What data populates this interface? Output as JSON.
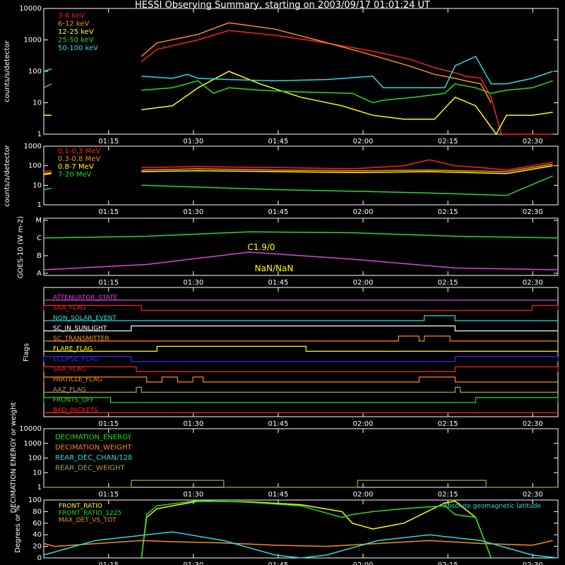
{
  "title": "HESSI Observing Summary, starting on 2003/09/17 01:01:24 UT",
  "time_ticks": [
    "01:15",
    "01:30",
    "01:45",
    "02:00",
    "02:15",
    "02:30"
  ],
  "colors": {
    "white": "#ffffff",
    "red": "#ff2020",
    "orange": "#ff8c1a",
    "yellow": "#ffff00",
    "green": "#22dd22",
    "cyan": "#20e0e0",
    "magenta": "#e040e0",
    "blue": "#3030ff",
    "olive": "#b0a040",
    "gray": "#808080"
  },
  "chart_data": [
    {
      "type": "line",
      "ylabel": "counts/s/detector",
      "y_scale": "log",
      "ylim": [
        1,
        10000
      ],
      "ytick_labels": [
        "1",
        "10",
        "100",
        "1000",
        "10000"
      ],
      "series": [
        {
          "name": "3-6 keV",
          "color": "red",
          "x": [
            0.0,
            0.02,
            0.17,
            0.19,
            0.22,
            0.3,
            0.36,
            0.45,
            0.53,
            0.62,
            0.71,
            0.76,
            0.8,
            0.82,
            0.85,
            0.87,
            0.89,
            0.99
          ],
          "y": [
            null,
            null,
            null,
            200,
            500,
            1000,
            2000,
            1400,
            900,
            500,
            250,
            130,
            90,
            70,
            60,
            15,
            1,
            1
          ]
        },
        {
          "name": "6-12 keV",
          "color": "orange",
          "x": [
            0.02,
            0.19,
            0.22,
            0.3,
            0.36,
            0.45,
            0.53,
            0.62,
            0.71,
            0.76,
            0.8,
            0.82,
            0.85,
            0.87
          ],
          "y": [
            null,
            300,
            800,
            1500,
            3500,
            2200,
            1000,
            400,
            150,
            80,
            60,
            50,
            40,
            10
          ]
        },
        {
          "name": "12-25 keV",
          "color": "yellow",
          "x": [
            0.0,
            0.015,
            0.02,
            0.19,
            0.25,
            0.3,
            0.36,
            0.42,
            0.5,
            0.58,
            0.64,
            0.7,
            0.76,
            0.8,
            0.84,
            0.88,
            0.9,
            0.95,
            0.99
          ],
          "y": [
            4,
            4,
            null,
            6,
            8,
            30,
            100,
            40,
            15,
            8,
            4,
            3,
            3,
            15,
            8,
            1,
            4,
            4,
            5
          ]
        },
        {
          "name": "25-50 keV",
          "color": "green",
          "x": [
            0.0,
            0.015,
            0.02,
            0.19,
            0.25,
            0.3,
            0.33,
            0.36,
            0.42,
            0.5,
            0.6,
            0.64,
            0.66,
            0.72,
            0.78,
            0.8,
            0.84,
            0.87,
            0.9,
            0.95,
            0.99
          ],
          "y": [
            30,
            40,
            null,
            25,
            30,
            50,
            20,
            30,
            25,
            22,
            20,
            10,
            12,
            15,
            20,
            40,
            30,
            20,
            25,
            30,
            50
          ]
        },
        {
          "name": "50-100 keV",
          "color": "cyan",
          "x": [
            0.0,
            0.015,
            0.02,
            0.19,
            0.25,
            0.28,
            0.3,
            0.36,
            0.45,
            0.55,
            0.64,
            0.66,
            0.72,
            0.78,
            0.8,
            0.84,
            0.87,
            0.9,
            0.95,
            0.99
          ],
          "y": [
            100,
            120,
            null,
            70,
            60,
            80,
            60,
            55,
            50,
            55,
            70,
            30,
            30,
            30,
            150,
            300,
            40,
            40,
            60,
            100
          ]
        }
      ]
    },
    {
      "type": "line",
      "ylabel": "counts/s/detector",
      "y_scale": "log",
      "ylim": [
        1,
        1000
      ],
      "ytick_labels": [
        "1",
        "10",
        "100",
        "1000"
      ],
      "series": [
        {
          "name": "0.1-0.3 MeV",
          "color": "red",
          "x": [
            0.0,
            0.015,
            0.02,
            0.19,
            0.3,
            0.45,
            0.6,
            0.7,
            0.75,
            0.8,
            0.85,
            0.9,
            0.99
          ],
          "y": [
            50,
            55,
            null,
            80,
            90,
            80,
            70,
            100,
            200,
            100,
            80,
            60,
            150
          ]
        },
        {
          "name": "0.3-0.8 MeV",
          "color": "orange",
          "x": [
            0.0,
            0.015,
            0.02,
            0.19,
            0.3,
            0.45,
            0.6,
            0.75,
            0.9,
            0.99
          ],
          "y": [
            40,
            45,
            null,
            60,
            70,
            60,
            55,
            60,
            50,
            120
          ]
        },
        {
          "name": "0.8-7 MeV",
          "color": "yellow",
          "x": [
            0.0,
            0.015,
            0.02,
            0.19,
            0.3,
            0.45,
            0.6,
            0.75,
            0.9,
            0.99
          ],
          "y": [
            35,
            40,
            null,
            50,
            55,
            50,
            45,
            50,
            40,
            100
          ]
        },
        {
          "name": "7-20 MeV",
          "color": "green",
          "x": [
            0.0,
            0.015,
            0.02,
            0.19,
            0.3,
            0.45,
            0.6,
            0.75,
            0.9,
            0.99
          ],
          "y": [
            6,
            7,
            null,
            10,
            8,
            6,
            5,
            4,
            3,
            30
          ]
        }
      ]
    },
    {
      "type": "line",
      "ylabel": "GOES-10 (W m-2)",
      "ytick_labels": [
        "A",
        "B",
        "C",
        "M"
      ],
      "annotations": [
        {
          "text": "C1.9/0",
          "color": "yellow"
        },
        {
          "text": "NaN/NaN",
          "color": "yellow"
        }
      ],
      "series": [
        {
          "color": "green",
          "x": [
            0.0,
            0.2,
            0.4,
            0.6,
            0.8,
            1.0
          ],
          "y": [
            2.0,
            2.1,
            2.35,
            2.3,
            2.1,
            2.0
          ]
        },
        {
          "color": "magenta",
          "x": [
            0.0,
            0.2,
            0.4,
            0.6,
            0.8,
            1.0
          ],
          "y": [
            0.2,
            0.5,
            1.2,
            0.8,
            0.3,
            0.2
          ]
        }
      ]
    },
    {
      "type": "line",
      "ylabel": "Flags",
      "flags": [
        {
          "name": "ATTENUATOR_STATE",
          "color": "magenta",
          "highs": []
        },
        {
          "name": "SAA_FLAG",
          "color": "red",
          "highs": [
            [
              0.0,
              0.19
            ],
            [
              0.95,
              1.0
            ]
          ]
        },
        {
          "name": "NON_SOLAR_EVENT",
          "color": "cyan",
          "highs": [
            [
              0.74,
              0.8
            ]
          ]
        },
        {
          "name": "SC_IN_SUNLIGHT",
          "color": "white",
          "highs": [
            [
              0.17,
              0.8
            ]
          ]
        },
        {
          "name": "SC_TRANSMITTER",
          "color": "orange",
          "highs": [
            [
              0.69,
              0.73
            ],
            [
              0.74,
              0.79
            ]
          ]
        },
        {
          "name": "FLARE_FLAG",
          "color": "yellow",
          "highs": [
            [
              0.22,
              0.51
            ]
          ]
        },
        {
          "name": "ECLIPSE_FLAG",
          "color": "blue",
          "highs": [
            [
              0.0,
              0.17
            ],
            [
              0.8,
              1.0
            ]
          ]
        },
        {
          "name": "SAA_FLAG",
          "color": "red",
          "highs": [
            [
              0.0,
              0.18
            ],
            [
              0.8,
              1.0
            ]
          ]
        },
        {
          "name": "PARTICLE_FLAG",
          "color": "orange",
          "highs": [
            [
              0.0,
              0.2
            ],
            [
              0.23,
              0.26
            ],
            [
              0.29,
              0.31
            ],
            [
              0.73,
              0.8
            ]
          ]
        },
        {
          "name": "AAZ_FLAG",
          "color": "olive",
          "highs": [
            [
              0.18,
              0.19
            ],
            [
              0.8,
              0.81
            ]
          ]
        },
        {
          "name": "FRONTS_OFF",
          "color": "green",
          "highs": [
            [
              0.0,
              0.13
            ],
            [
              0.84,
              1.0
            ]
          ]
        },
        {
          "name": "BAD_PACKETS",
          "color": "red",
          "highs": []
        }
      ]
    },
    {
      "type": "line",
      "ylabel": "DECIMATION ENERGY or weight",
      "y_scale": "log",
      "ylim": [
        1,
        10000
      ],
      "ytick_labels": [
        "1",
        "10",
        "100",
        "1000",
        "10000"
      ],
      "series": [
        {
          "name": "DECIMATION_ENERGY",
          "color": "green",
          "x": [],
          "y": []
        },
        {
          "name": "DECIMATION_WEIGHT",
          "color": "orange",
          "x": [],
          "y": []
        },
        {
          "name": "REAR_DEC_CHAN/128",
          "color": "cyan",
          "x": [],
          "y": []
        },
        {
          "name": "REAR_DEC_WEIGHT",
          "color": "olive",
          "x": [
            0.0,
            0.17,
            0.17,
            0.35,
            0.35,
            0.61,
            0.61,
            0.86,
            0.86,
            1.0
          ],
          "y": [
            1,
            1,
            3,
            3,
            1,
            1,
            3,
            3,
            1,
            1
          ]
        }
      ]
    },
    {
      "type": "line",
      "ylabel": "Degrees or %",
      "ylim": [
        0,
        100
      ],
      "ytick_labels": [
        "0",
        "20",
        "40",
        "60",
        "80",
        "100"
      ],
      "series": [
        {
          "name": "FRONT_RATIO",
          "color": "yellow",
          "x": [
            0.19,
            0.2,
            0.22,
            0.3,
            0.4,
            0.5,
            0.58,
            0.6,
            0.64,
            0.7,
            0.78,
            0.8,
            0.84,
            0.87
          ],
          "y": [
            0,
            70,
            85,
            98,
            97,
            92,
            80,
            60,
            50,
            60,
            95,
            98,
            70,
            0
          ]
        },
        {
          "name": "FRONT_RATIO_1225",
          "color": "green",
          "x": [
            0.19,
            0.2,
            0.22,
            0.3,
            0.4,
            0.5,
            0.58,
            0.6,
            0.64,
            0.7,
            0.78,
            0.8,
            0.84,
            0.87
          ],
          "y": [
            0,
            75,
            90,
            99,
            96,
            90,
            70,
            75,
            80,
            85,
            90,
            75,
            70,
            0
          ]
        },
        {
          "name": "MAX_DET_VS_TOT",
          "color": "orange",
          "x": [
            0.0,
            0.02,
            0.19,
            0.25,
            0.35,
            0.45,
            0.55,
            0.65,
            0.75,
            0.85,
            0.95,
            0.99
          ],
          "y": [
            25,
            20,
            30,
            28,
            26,
            22,
            20,
            25,
            30,
            25,
            22,
            30
          ]
        },
        {
          "name": "Absolute geomagnetic latitude",
          "color": "cyan",
          "x": [
            0.0,
            0.1,
            0.25,
            0.35,
            0.45,
            0.5,
            0.55,
            0.65,
            0.75,
            0.85,
            0.95,
            1.0
          ],
          "y": [
            5,
            30,
            45,
            30,
            5,
            0,
            5,
            30,
            40,
            30,
            5,
            0
          ]
        }
      ]
    }
  ]
}
